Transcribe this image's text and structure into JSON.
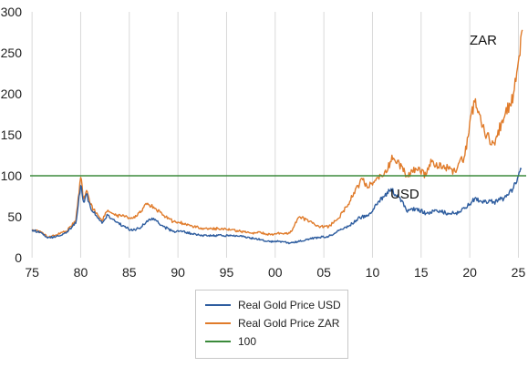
{
  "chart_data": {
    "type": "line",
    "x_ticks": [
      "75",
      "80",
      "85",
      "90",
      "95",
      "00",
      "05",
      "10",
      "15",
      "20",
      "25"
    ],
    "y_ticks": [
      0,
      50,
      100,
      150,
      200,
      250,
      300
    ],
    "ylim": [
      0,
      300
    ],
    "xlim": [
      1974.8,
      2025.8
    ],
    "grid": "vertical",
    "legend_position": "bottom",
    "annotations": [
      "ZAR",
      "USD"
    ],
    "series": [
      {
        "name": "Real Gold Price USD",
        "color": "#2e5d9f",
        "x": [
          1975.0,
          1976.0,
          1976.6,
          1977.5,
          1978.5,
          1979.5,
          1980.0,
          1980.3,
          1980.6,
          1981.0,
          1981.5,
          1982.2,
          1982.8,
          1983.5,
          1984.5,
          1985.3,
          1986.0,
          1986.8,
          1987.5,
          1988.5,
          1989.5,
          1990.5,
          1991.5,
          1992.5,
          1993.5,
          1994.5,
          1995.5,
          1996.5,
          1997.5,
          1998.5,
          1999.5,
          2000.5,
          2001.5,
          2002.5,
          2003.5,
          2004.5,
          2005.5,
          2006.5,
          2007.5,
          2008.5,
          2009.5,
          2010.5,
          2011.5,
          2012.0,
          2012.5,
          2013.0,
          2013.5,
          2014.5,
          2015.5,
          2016.5,
          2017.5,
          2018.5,
          2019.5,
          2020.5,
          2021.5,
          2022.5,
          2023.5,
          2024.5,
          2025.0,
          2025.3
        ],
        "values": [
          34,
          30,
          24,
          26,
          30,
          42,
          88,
          68,
          78,
          62,
          52,
          42,
          52,
          45,
          38,
          33,
          36,
          45,
          48,
          38,
          32,
          32,
          29,
          27,
          27,
          27,
          27,
          27,
          24,
          22,
          20,
          20,
          18,
          20,
          23,
          25,
          26,
          33,
          38,
          48,
          52,
          65,
          80,
          82,
          75,
          70,
          57,
          60,
          54,
          58,
          55,
          54,
          60,
          72,
          68,
          68,
          72,
          85,
          100,
          108
        ]
      },
      {
        "name": "Real Gold Price ZAR",
        "color": "#e07b2a",
        "x": [
          1975.0,
          1976.0,
          1976.6,
          1977.5,
          1978.5,
          1979.5,
          1980.0,
          1980.3,
          1980.6,
          1981.0,
          1981.5,
          1982.2,
          1982.8,
          1983.5,
          1984.5,
          1985.3,
          1986.0,
          1986.8,
          1987.5,
          1988.5,
          1989.5,
          1990.5,
          1991.5,
          1992.5,
          1993.5,
          1994.5,
          1995.5,
          1996.5,
          1997.5,
          1998.5,
          1999.5,
          2000.5,
          2001.5,
          2002.0,
          2002.5,
          2003.5,
          2004.5,
          2005.5,
          2006.5,
          2007.5,
          2008.5,
          2009.0,
          2009.5,
          2010.5,
          2011.5,
          2012.0,
          2012.5,
          2013.0,
          2013.5,
          2014.5,
          2015.5,
          2016.0,
          2016.5,
          2017.5,
          2018.5,
          2019.5,
          2020.0,
          2020.5,
          2021.0,
          2021.5,
          2022.0,
          2022.5,
          2023.5,
          2024.5,
          2025.0,
          2025.4
        ],
        "values": [
          34,
          31,
          25,
          28,
          32,
          45,
          98,
          72,
          82,
          65,
          55,
          45,
          58,
          52,
          50,
          48,
          55,
          65,
          62,
          52,
          44,
          42,
          38,
          36,
          35,
          36,
          34,
          32,
          30,
          31,
          28,
          30,
          30,
          40,
          50,
          44,
          38,
          38,
          48,
          65,
          88,
          95,
          85,
          98,
          105,
          125,
          115,
          112,
          100,
          108,
          100,
          120,
          112,
          110,
          105,
          125,
          165,
          190,
          175,
          155,
          145,
          140,
          170,
          200,
          240,
          278
        ]
      },
      {
        "name": "100",
        "color": "#3b8a3b",
        "x": [
          1974.8,
          2025.8
        ],
        "values": [
          100,
          100
        ]
      }
    ]
  }
}
